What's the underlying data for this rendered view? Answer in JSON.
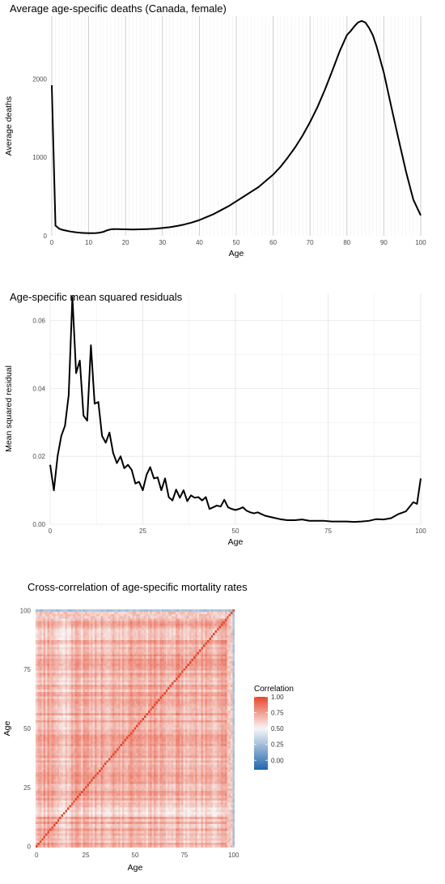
{
  "chart_data": [
    {
      "type": "line",
      "title": "Average age-specific deaths (Canada, female)",
      "xlabel": "Age",
      "ylabel": "Average deaths",
      "xlim": [
        0,
        100
      ],
      "ylim": [
        0,
        2800
      ],
      "x_ticks": [
        0,
        10,
        20,
        30,
        40,
        50,
        60,
        70,
        80,
        90,
        100
      ],
      "y_ticks": [
        0,
        1000,
        2000
      ],
      "grid": "vertical",
      "line_color": "#000000",
      "x": [
        0,
        1,
        2,
        3,
        4,
        5,
        6,
        7,
        8,
        9,
        10,
        11,
        12,
        13,
        14,
        15,
        16,
        17,
        18,
        19,
        20,
        22,
        24,
        26,
        28,
        30,
        32,
        34,
        36,
        38,
        40,
        42,
        44,
        46,
        48,
        50,
        52,
        54,
        56,
        58,
        60,
        62,
        64,
        66,
        68,
        70,
        72,
        74,
        76,
        78,
        80,
        81,
        82,
        83,
        84,
        85,
        86,
        87,
        88,
        90,
        92,
        94,
        96,
        98,
        100
      ],
      "y": [
        1920,
        130,
        90,
        75,
        65,
        55,
        48,
        42,
        38,
        35,
        33,
        33,
        35,
        40,
        50,
        70,
        82,
        85,
        85,
        83,
        82,
        80,
        82,
        85,
        90,
        100,
        110,
        125,
        145,
        170,
        200,
        240,
        280,
        330,
        380,
        440,
        500,
        560,
        620,
        700,
        780,
        880,
        1000,
        1130,
        1280,
        1450,
        1640,
        1860,
        2100,
        2350,
        2560,
        2610,
        2670,
        2720,
        2740,
        2720,
        2650,
        2560,
        2420,
        2080,
        1650,
        1230,
        820,
        460,
        260
      ]
    },
    {
      "type": "line",
      "title": "Age-specific mean squared residuals",
      "xlabel": "Age",
      "ylabel": "Mean squared residual",
      "xlim": [
        0,
        100
      ],
      "ylim": [
        0,
        0.068
      ],
      "x_ticks": [
        0,
        25,
        50,
        75,
        100
      ],
      "y_ticks": [
        0.0,
        0.02,
        0.04,
        0.06
      ],
      "y_tick_labels": [
        "0.00",
        "0.02",
        "0.04",
        "0.06"
      ],
      "grid": "both",
      "line_color": "#000000",
      "x": [
        0,
        1,
        2,
        3,
        4,
        5,
        6,
        7,
        8,
        9,
        10,
        11,
        12,
        13,
        14,
        15,
        16,
        17,
        18,
        19,
        20,
        21,
        22,
        23,
        24,
        25,
        26,
        27,
        28,
        29,
        30,
        31,
        32,
        33,
        34,
        35,
        36,
        37,
        38,
        39,
        40,
        41,
        42,
        43,
        44,
        45,
        46,
        47,
        48,
        49,
        50,
        51,
        52,
        53,
        54,
        55,
        56,
        57,
        58,
        60,
        62,
        64,
        66,
        68,
        70,
        72,
        74,
        76,
        78,
        80,
        82,
        84,
        86,
        88,
        90,
        92,
        94,
        96,
        98,
        99,
        100
      ],
      "y": [
        0.0175,
        0.01,
        0.02,
        0.026,
        0.029,
        0.038,
        0.067,
        0.0445,
        0.0482,
        0.032,
        0.0305,
        0.0527,
        0.0355,
        0.036,
        0.026,
        0.024,
        0.027,
        0.021,
        0.018,
        0.02,
        0.0165,
        0.0175,
        0.016,
        0.012,
        0.0125,
        0.01,
        0.0145,
        0.0168,
        0.0135,
        0.0138,
        0.01,
        0.0135,
        0.008,
        0.007,
        0.0102,
        0.0078,
        0.01,
        0.0068,
        0.0085,
        0.0078,
        0.008,
        0.007,
        0.008,
        0.0045,
        0.005,
        0.0055,
        0.0052,
        0.0072,
        0.005,
        0.0045,
        0.0042,
        0.0045,
        0.005,
        0.004,
        0.0035,
        0.0032,
        0.0035,
        0.003,
        0.0025,
        0.002,
        0.0015,
        0.0012,
        0.0012,
        0.0014,
        0.001,
        0.001,
        0.001,
        0.0008,
        0.0008,
        0.0008,
        0.0007,
        0.0008,
        0.001,
        0.0015,
        0.0014,
        0.0018,
        0.003,
        0.0038,
        0.0065,
        0.006,
        0.0135
      ]
    },
    {
      "type": "heatmap",
      "title": "Cross-correlation of age-specific mortality rates",
      "xlabel": "Age",
      "ylabel": "Age",
      "xlim": [
        0,
        101
      ],
      "ylim": [
        0,
        101
      ],
      "x_ticks": [
        0,
        25,
        50,
        75,
        100
      ],
      "y_ticks": [
        0,
        25,
        50,
        75,
        100
      ],
      "legend": {
        "title": "Correlation",
        "placement": "right",
        "breaks": [
          1.0,
          0.75,
          0.5,
          0.25,
          0.0
        ],
        "labels": [
          "1.00",
          "0.75",
          "0.50",
          "0.25",
          "0.00"
        ],
        "range": [
          -0.15,
          1.0
        ],
        "colors": {
          "low": "#2166ac",
          "mid": "#f7f7f7",
          "high": "#e8462b"
        }
      }
    }
  ]
}
